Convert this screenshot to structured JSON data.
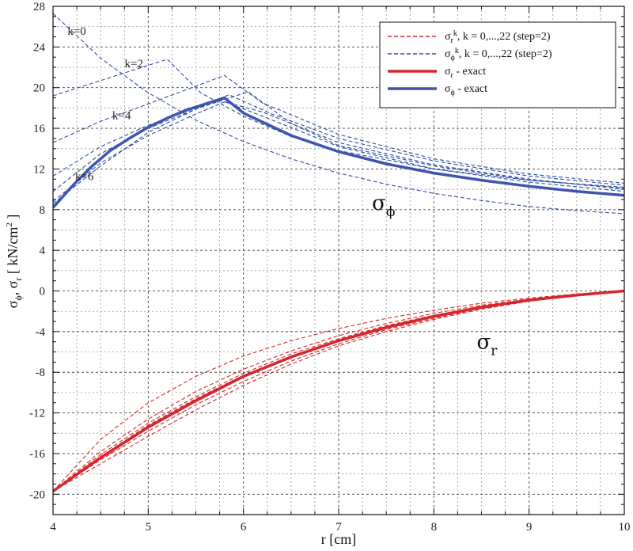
{
  "chart_data": {
    "type": "line",
    "title": "",
    "xlabel": "r [cm]",
    "ylabel": "σϕ, σr [ kN/cm2 ]",
    "ylabel_parts": {
      "s1": "σ",
      "phi": "ϕ",
      "sep": ", σ",
      "r": "r",
      "unit": " [ kN/cm",
      "sq": "2",
      "close": " ]"
    },
    "xlim": [
      4,
      10
    ],
    "ylim": [
      -22,
      28
    ],
    "x_ticks": [
      4,
      5,
      6,
      7,
      8,
      9,
      10
    ],
    "y_ticks": [
      -20,
      -16,
      -12,
      -8,
      -4,
      0,
      4,
      8,
      12,
      16,
      20,
      24,
      28
    ],
    "grid": true,
    "legend": {
      "position": "top-right",
      "entries": [
        {
          "symbol": "σ",
          "sub": "r",
          "sup": "k",
          "text": ", k = 0,...,22  (step=2)",
          "color": "#d6262b",
          "style": "dashed"
        },
        {
          "symbol": "σ",
          "sub": "ϕ",
          "sup": "k",
          "text": ", k = 0,...,22  (step=2)",
          "color": "#2e4ea3",
          "style": "dashed"
        },
        {
          "symbol": "σ",
          "sub": "r",
          "sup": "",
          "text": " - exact",
          "color": "#d6262b",
          "style": "solid"
        },
        {
          "symbol": "σ",
          "sub": "ϕ",
          "sup": "",
          "text": " - exact",
          "color": "#3f55ad",
          "style": "solid"
        }
      ]
    },
    "annotations": [
      {
        "text": "k=0",
        "x": 4.25,
        "y": 25.2
      },
      {
        "text": "k=2",
        "x": 4.85,
        "y": 22.0
      },
      {
        "text": "k=4",
        "x": 4.72,
        "y": 16.9
      },
      {
        "text": "k=6",
        "x": 4.33,
        "y": 10.9
      }
    ],
    "curve_labels": [
      {
        "symbol": "σ",
        "sub": "ϕ",
        "x": 7.35,
        "y": 8.0
      },
      {
        "symbol": "σ",
        "sub": "r",
        "x": 8.45,
        "y": -5.7
      }
    ],
    "series": [
      {
        "name": "σϕ - exact",
        "color": "#3f55ad",
        "style": "solid",
        "width": 3.5,
        "x": [
          4,
          4.2,
          4.4,
          4.6,
          4.8,
          5.0,
          5.2,
          5.4,
          5.6,
          5.8,
          6.0,
          6.5,
          7.0,
          7.5,
          8.0,
          8.5,
          9.0,
          9.5,
          10.0
        ],
        "y": [
          8.2,
          10.3,
          12.2,
          13.8,
          15.0,
          16.1,
          17.0,
          17.8,
          18.4,
          19.0,
          17.5,
          15.3,
          13.7,
          12.5,
          11.6,
          10.9,
          10.3,
          9.8,
          9.4
        ]
      },
      {
        "name": "σr - exact",
        "color": "#d6262b",
        "style": "solid",
        "width": 3.5,
        "x": [
          4,
          4.5,
          5.0,
          5.5,
          6.0,
          6.5,
          7.0,
          7.5,
          8.0,
          8.5,
          9.0,
          9.5,
          10.0
        ],
        "y": [
          -19.7,
          -16.4,
          -13.4,
          -10.8,
          -8.4,
          -6.5,
          -4.9,
          -3.6,
          -2.5,
          -1.6,
          -0.9,
          -0.4,
          0
        ]
      },
      {
        "name": "σϕ k=0",
        "color": "#2e4ea3",
        "style": "dashed",
        "width": 1.1,
        "x": [
          4.0,
          4.5,
          5.0,
          5.5,
          6.0,
          6.5,
          7.0,
          7.5,
          8.0,
          8.5,
          9.0,
          9.5,
          10.0
        ],
        "y": [
          27.3,
          22.9,
          19.5,
          16.8,
          14.7,
          13.0,
          11.6,
          10.5,
          9.6,
          8.9,
          8.3,
          7.9,
          7.6
        ]
      },
      {
        "name": "σϕ k=2",
        "color": "#2e4ea3",
        "style": "dashed",
        "width": 1.1,
        "x": [
          4.0,
          5.2,
          5.55,
          6.0,
          6.5,
          7.0,
          8.0,
          9.0,
          10.0
        ],
        "y": [
          19.2,
          22.8,
          19.5,
          17.2,
          15.2,
          13.8,
          12.0,
          10.9,
          10.2
        ]
      },
      {
        "name": "σϕ k=4",
        "color": "#2e4ea3",
        "style": "dashed",
        "width": 1.1,
        "x": [
          4.0,
          4.5,
          5.0,
          5.8,
          6.2,
          7.0,
          8.0,
          9.0,
          10.0
        ],
        "y": [
          14.6,
          16.7,
          18.4,
          21.2,
          18.5,
          15.4,
          13.0,
          11.5,
          10.6
        ]
      },
      {
        "name": "σϕ k=6",
        "color": "#2e4ea3",
        "style": "dashed",
        "width": 1.1,
        "x": [
          4.0,
          4.5,
          5.0,
          5.5,
          5.85,
          6.3,
          7.0,
          8.0,
          9.0,
          10.0
        ],
        "y": [
          11.3,
          14.2,
          16.3,
          18.0,
          19.3,
          17.4,
          15.0,
          12.8,
          11.3,
          10.4
        ]
      },
      {
        "name": "σϕ k=8",
        "color": "#2e4ea3",
        "style": "dashed",
        "width": 1.1,
        "x": [
          4.0,
          4.5,
          5.0,
          5.5,
          6.05,
          6.5,
          7.0,
          8.0,
          9.0,
          10.0
        ],
        "y": [
          9.8,
          13.5,
          16.0,
          17.9,
          19.6,
          16.5,
          14.3,
          12.3,
          10.9,
          10.1
        ]
      },
      {
        "name": "σϕ k=10",
        "color": "#2e4ea3",
        "style": "dashed",
        "width": 1.1,
        "x": [
          4.0,
          4.5,
          5.0,
          5.5,
          5.8,
          6.2,
          7.0,
          8.0,
          9.0,
          10.0
        ],
        "y": [
          8.8,
          12.6,
          15.3,
          17.4,
          18.6,
          17.6,
          14.6,
          12.4,
          11.0,
          10.0
        ]
      },
      {
        "name": "σϕ k=12",
        "color": "#2e4ea3",
        "style": "dashed",
        "width": 1.1,
        "x": [
          4.0,
          4.5,
          5.0,
          5.5,
          5.75,
          6.2,
          7.0,
          8.0,
          9.0,
          10.0
        ],
        "y": [
          8.6,
          12.3,
          15.6,
          17.9,
          18.8,
          17.2,
          14.2,
          12.0,
          10.7,
          9.8
        ]
      },
      {
        "name": "σr k=0",
        "color": "#d6262b",
        "style": "dashed",
        "width": 1.1,
        "x": [
          4.0,
          4.5,
          5.0,
          5.5,
          6.0,
          6.5,
          7.0,
          7.5,
          8.0,
          8.5,
          9.0,
          9.5,
          10.0
        ],
        "y": [
          -19.7,
          -14.6,
          -11.0,
          -8.4,
          -6.4,
          -4.9,
          -3.7,
          -2.7,
          -1.9,
          -1.2,
          -0.7,
          -0.3,
          0
        ]
      },
      {
        "name": "σr k=2",
        "color": "#d6262b",
        "style": "dashed",
        "width": 1.1,
        "x": [
          4.0,
          4.5,
          5.0,
          5.5,
          6.0,
          6.5,
          7.0,
          7.5,
          8.0,
          8.5,
          9.0,
          9.5,
          10.0
        ],
        "y": [
          -19.7,
          -15.8,
          -12.6,
          -9.9,
          -7.7,
          -5.9,
          -4.4,
          -3.2,
          -2.2,
          -1.4,
          -0.8,
          -0.3,
          0
        ]
      },
      {
        "name": "σr k=4",
        "color": "#d6262b",
        "style": "dashed",
        "width": 1.1,
        "x": [
          4.0,
          4.5,
          5.0,
          5.5,
          6.0,
          6.5,
          7.0,
          7.5,
          8.0,
          8.5,
          9.0,
          9.5,
          10.0
        ],
        "y": [
          -19.7,
          -16.1,
          -13.0,
          -10.4,
          -8.1,
          -6.2,
          -4.7,
          -3.4,
          -2.4,
          -1.5,
          -0.9,
          -0.4,
          0
        ]
      },
      {
        "name": "σr k=6",
        "color": "#d6262b",
        "style": "dashed",
        "width": 1.1,
        "x": [
          4.0,
          4.5,
          5.0,
          5.5,
          6.0,
          6.5,
          7.0,
          7.5,
          8.0,
          8.5,
          9.0,
          9.5,
          10.0
        ],
        "y": [
          -19.7,
          -16.6,
          -13.8,
          -11.2,
          -8.9,
          -6.9,
          -5.2,
          -3.8,
          -2.7,
          -1.7,
          -1.0,
          -0.4,
          0
        ]
      },
      {
        "name": "σr k=8",
        "color": "#d6262b",
        "style": "dashed",
        "width": 1.1,
        "x": [
          4.0,
          4.5,
          5.0,
          5.5,
          6.0,
          6.5,
          7.0,
          7.5,
          8.0,
          8.5,
          9.0,
          9.5,
          10.0
        ],
        "y": [
          -19.7,
          -17.0,
          -14.3,
          -11.7,
          -9.3,
          -7.2,
          -5.4,
          -4.0,
          -2.8,
          -1.8,
          -1.0,
          -0.4,
          0
        ]
      },
      {
        "name": "σr k=10",
        "color": "#d6262b",
        "style": "dashed",
        "width": 1.1,
        "x": [
          4.0,
          4.5,
          5.0,
          5.5,
          6.0,
          6.5,
          7.0,
          7.5,
          8.0,
          8.5,
          9.0,
          9.5,
          10.0
        ],
        "y": [
          -19.7,
          -16.3,
          -13.2,
          -10.6,
          -8.3,
          -6.4,
          -4.8,
          -3.5,
          -2.5,
          -1.6,
          -0.9,
          -0.4,
          0
        ]
      }
    ]
  }
}
